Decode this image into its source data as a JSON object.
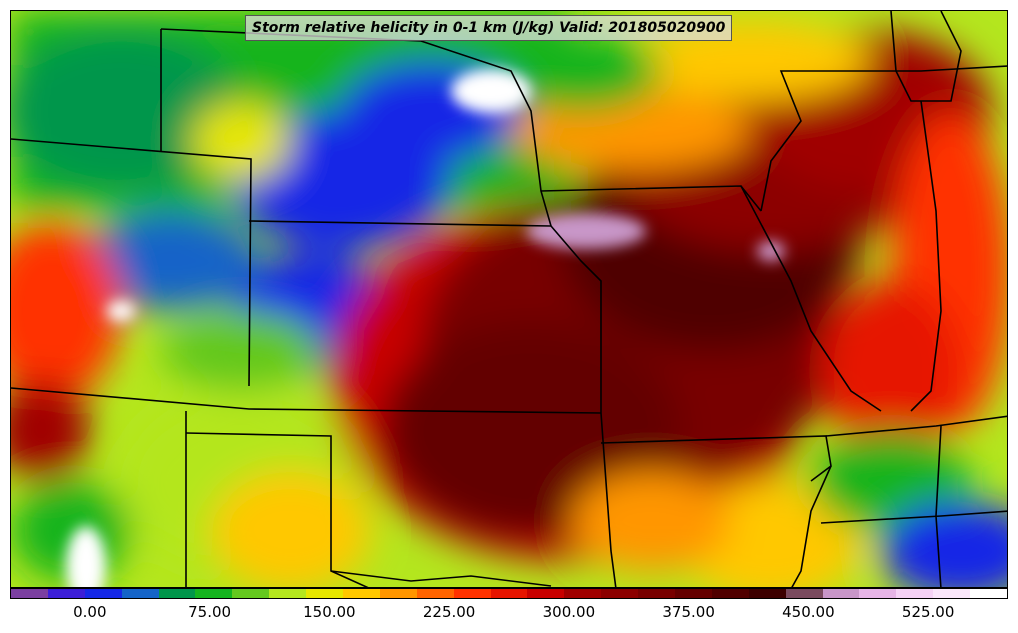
{
  "title": "Storm relative helicity in 0-1 km (J/kg) Valid: 201805020900",
  "colorbar": {
    "min": -50,
    "max": 575,
    "step": 25,
    "colors": [
      "#7b3fa0",
      "#3c1ed7",
      "#1528e6",
      "#1464c8",
      "#00964b",
      "#14b41e",
      "#64c81e",
      "#b4e61e",
      "#e6e600",
      "#ffc800",
      "#ff9600",
      "#ff6400",
      "#ff3200",
      "#e61400",
      "#c80000",
      "#a00000",
      "#8c0000",
      "#780000",
      "#640000",
      "#500000",
      "#3c0000",
      "#7a4a5e",
      "#c896c8",
      "#e6b4e6",
      "#f5d2f5",
      "#fae6fa",
      "#ffffff"
    ],
    "tick_labels": [
      {
        "value": 0,
        "label": "0.00"
      },
      {
        "value": 75,
        "label": "75.00"
      },
      {
        "value": 150,
        "label": "150.00"
      },
      {
        "value": 225,
        "label": "225.00"
      },
      {
        "value": 300,
        "label": "300.00"
      },
      {
        "value": 375,
        "label": "375.00"
      },
      {
        "value": 450,
        "label": "450.00"
      },
      {
        "value": 525,
        "label": "525.00"
      }
    ]
  }
}
